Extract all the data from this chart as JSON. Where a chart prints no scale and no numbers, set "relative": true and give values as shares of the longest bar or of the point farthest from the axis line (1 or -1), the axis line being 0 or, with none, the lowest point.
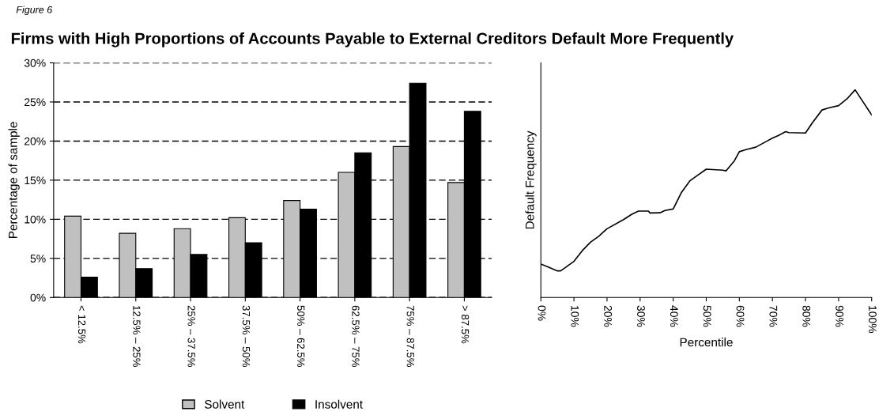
{
  "chart_data": [
    {
      "type": "bar",
      "title": "Firms with High Proportions of Accounts Payable to External Creditors Default More Frequently",
      "annotations": [
        "Figure 6"
      ],
      "ylabel": "Percentage of sample",
      "categories": [
        "< 12.5%",
        "12.5% – 25%",
        "25% – 37.5%",
        "37.5% – 50%",
        "50% – 62.5%",
        "62.5% – 75%",
        "75% – 87.5%",
        "> 87.5%"
      ],
      "series": [
        {
          "name": "Solvent",
          "color": "#c0c0c0",
          "values": [
            10.4,
            8.2,
            8.8,
            10.2,
            12.4,
            16.0,
            19.3,
            14.7
          ]
        },
        {
          "name": "Insolvent",
          "color": "#000000",
          "values": [
            2.6,
            3.7,
            5.5,
            7.0,
            11.3,
            18.5,
            27.4,
            23.8
          ]
        }
      ],
      "ylim": [
        0,
        30
      ],
      "yticks": [
        {
          "value": 0,
          "label": "0%"
        },
        {
          "value": 5,
          "label": "5%"
        },
        {
          "value": 10,
          "label": "10%"
        },
        {
          "value": 15,
          "label": "15%"
        },
        {
          "value": 20,
          "label": "20%"
        },
        {
          "value": 25,
          "label": "25%"
        },
        {
          "value": 30,
          "label": "30%"
        }
      ],
      "grid": "y",
      "legend": "bottom"
    },
    {
      "type": "line",
      "xlabel": "Percentile",
      "ylabel": "Default Frequency",
      "relative": true,
      "series": [
        {
          "color": "#000000",
          "x": [
            0,
            2.5,
            5,
            6,
            10,
            12.5,
            15,
            17.5,
            20,
            25,
            27.5,
            29.5,
            32.5,
            33,
            36,
            37.5,
            40,
            42.5,
            45,
            47.5,
            50,
            55,
            56,
            58.5,
            60,
            62,
            65,
            67.5,
            70,
            72,
            74,
            75,
            80,
            82,
            85,
            87,
            90,
            92.5,
            95,
            100
          ],
          "values": [
            0.161,
            0.145,
            0.128,
            0.128,
            0.174,
            0.225,
            0.266,
            0.295,
            0.331,
            0.375,
            0.401,
            0.416,
            0.416,
            0.407,
            0.408,
            0.419,
            0.426,
            0.506,
            0.561,
            0.59,
            0.618,
            0.613,
            0.61,
            0.658,
            0.702,
            0.712,
            0.724,
            0.746,
            0.767,
            0.782,
            0.799,
            0.794,
            0.792,
            0.84,
            0.903,
            0.913,
            0.924,
            0.956,
            1,
            0.879
          ]
        }
      ],
      "xlim": [
        0,
        100
      ],
      "xticks": [
        {
          "value": 0,
          "label": "0%"
        },
        {
          "value": 10,
          "label": "10%"
        },
        {
          "value": 20,
          "label": "20%"
        },
        {
          "value": 30,
          "label": "30%"
        },
        {
          "value": 40,
          "label": "40%"
        },
        {
          "value": 50,
          "label": "50%"
        },
        {
          "value": 60,
          "label": "60%"
        },
        {
          "value": 70,
          "label": "70%"
        },
        {
          "value": 80,
          "label": "80%"
        },
        {
          "value": 90,
          "label": "90%"
        },
        {
          "value": 100,
          "label": "100%"
        }
      ],
      "grid": false,
      "marker": "none",
      "line_style": "solid"
    }
  ]
}
